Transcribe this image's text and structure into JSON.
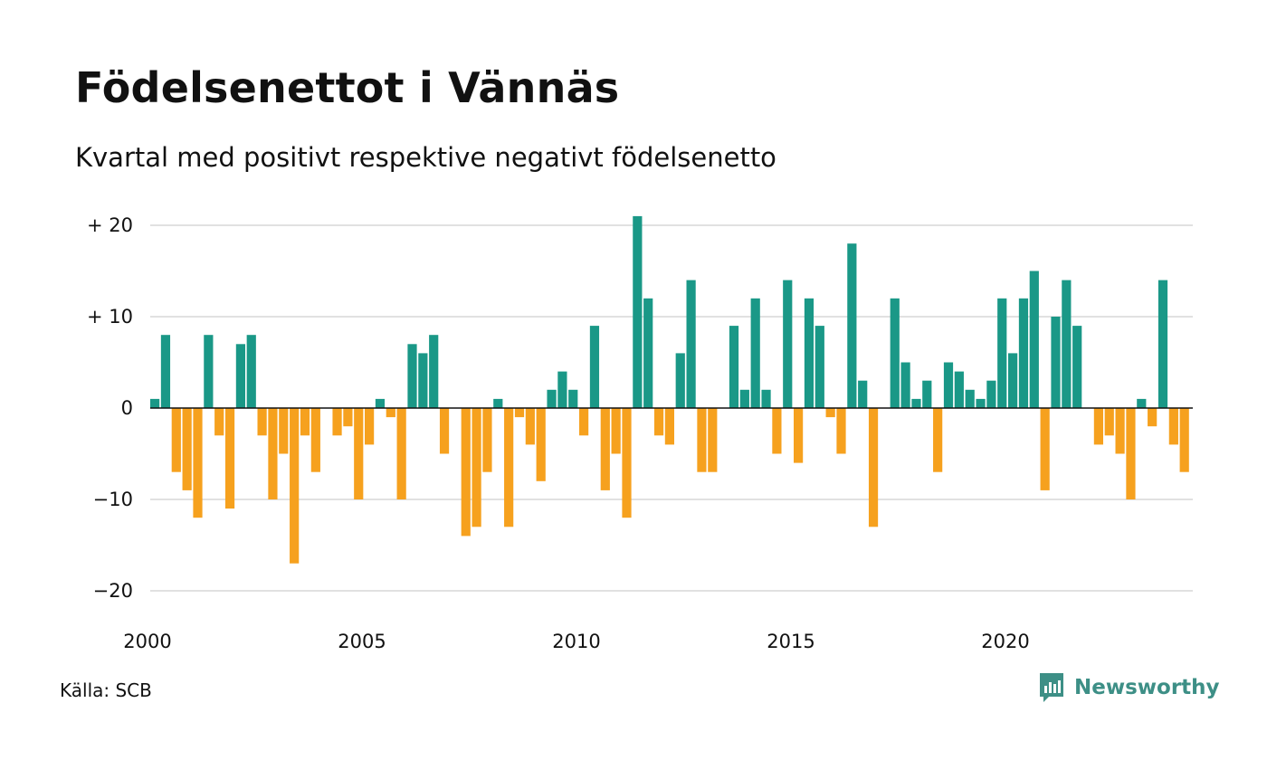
{
  "header": {
    "title": "Födelsenettot i Vännäs",
    "subtitle": "Kvartal med positivt respektive negativt födelsenetto"
  },
  "footer": {
    "source": "Källa: SCB",
    "brand": "Newsworthy"
  },
  "colors": {
    "positive": "#1a9887",
    "negative": "#f6a11e",
    "grid": "#e1e1e1",
    "brand": "#3d8f86"
  },
  "icons": {
    "brand_logo": "chat-bar-chart-icon"
  },
  "chart_data": {
    "type": "bar",
    "x_start": "2000 Q1",
    "values": [
      1,
      8,
      -7,
      -9,
      -12,
      8,
      -3,
      -11,
      7,
      8,
      -3,
      -10,
      -5,
      -17,
      -3,
      -7,
      0,
      -3,
      -2,
      -10,
      -4,
      1,
      -1,
      -10,
      7,
      6,
      8,
      -5,
      0,
      -14,
      -13,
      -7,
      1,
      -13,
      -1,
      -4,
      -8,
      2,
      4,
      2,
      -3,
      9,
      -9,
      -5,
      -12,
      21,
      12,
      -3,
      -4,
      6,
      14,
      -7,
      -7,
      0,
      9,
      2,
      12,
      2,
      -5,
      14,
      -6,
      12,
      9,
      -1,
      -5,
      18,
      3,
      -13,
      0,
      12,
      5,
      1,
      3,
      -7,
      5,
      4,
      2,
      1,
      3,
      12,
      6,
      12,
      15,
      -9,
      10,
      14,
      9,
      0,
      -4,
      -3,
      -5,
      -10,
      1,
      -2,
      14,
      -4,
      -7
    ],
    "y_ticks": [
      {
        "value": 20,
        "label": "+ 20"
      },
      {
        "value": 10,
        "label": "+ 10"
      },
      {
        "value": 0,
        "label": "0"
      },
      {
        "value": -10,
        "label": "−10"
      },
      {
        "value": -20,
        "label": "−20"
      }
    ],
    "x_ticks": [
      {
        "value": 2000,
        "label": "2000"
      },
      {
        "value": 2005,
        "label": "2005"
      },
      {
        "value": 2010,
        "label": "2010"
      },
      {
        "value": 2015,
        "label": "2015"
      },
      {
        "value": 2020,
        "label": "2020"
      }
    ],
    "ylim": [
      -22,
      21
    ],
    "grid": true,
    "legend": "none"
  }
}
